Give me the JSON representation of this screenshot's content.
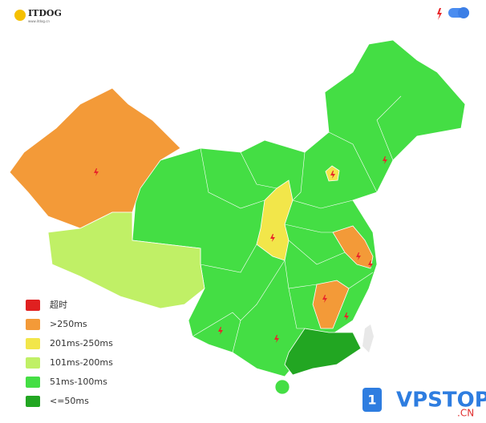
{
  "header": {
    "logo": "ITDOG",
    "logo_url": "www.itdog.cn"
  },
  "legend": [
    {
      "label": "超时",
      "color": "#e02020"
    },
    {
      "label": ">250ms",
      "color": "#f39a38"
    },
    {
      "label": "201ms-250ms",
      "color": "#f2e64a"
    },
    {
      "label": "101ms-200ms",
      "color": "#c0f066"
    },
    {
      "label": "51ms-100ms",
      "color": "#44de44"
    },
    {
      "label": "<=50ms",
      "color": "#22a622"
    }
  ],
  "watermark": {
    "badge": "1",
    "name": "VPSTOP",
    "suffix": ".CN"
  }
}
